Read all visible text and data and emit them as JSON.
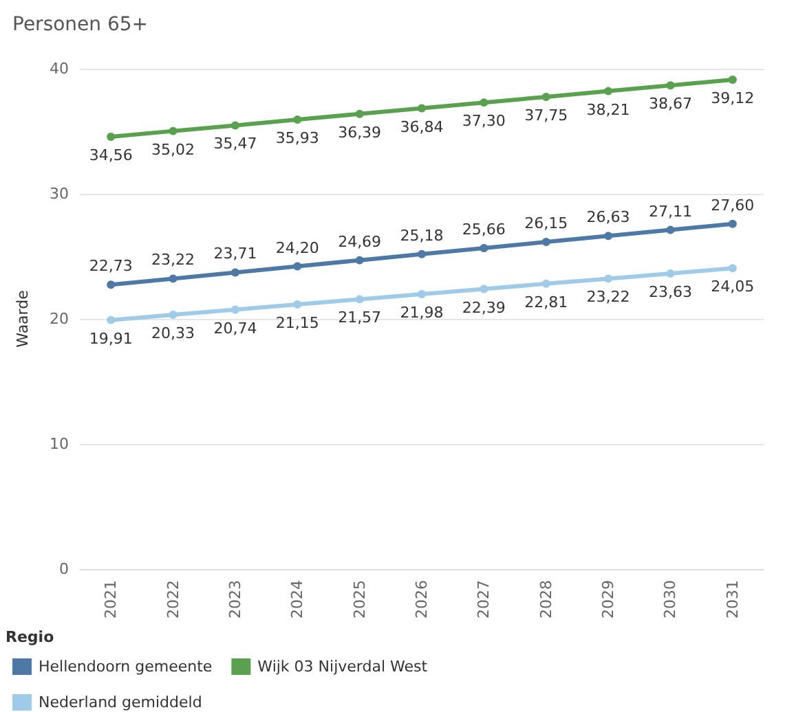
{
  "chart_data": {
    "type": "line",
    "title": "Personen 65+",
    "ylabel": "Waarde",
    "legend_title": "Regio",
    "categories": [
      "2021",
      "2022",
      "2023",
      "2024",
      "2025",
      "2026",
      "2027",
      "2028",
      "2029",
      "2030",
      "2031"
    ],
    "series": [
      {
        "name": "Hellendoorn gemeente",
        "color": "#4e79a7",
        "values": [
          22.73,
          23.22,
          23.71,
          24.2,
          24.69,
          25.18,
          25.66,
          26.15,
          26.63,
          27.11,
          27.6
        ],
        "value_labels": [
          "22,73",
          "23,22",
          "23,71",
          "24,20",
          "24,69",
          "25,18",
          "25,66",
          "26,15",
          "26,63",
          "27,11",
          "27,60"
        ]
      },
      {
        "name": "Wijk 03 Nijverdal West",
        "color": "#59a14f",
        "values": [
          34.56,
          35.02,
          35.47,
          35.93,
          36.39,
          36.84,
          37.3,
          37.75,
          38.21,
          38.67,
          39.12
        ],
        "value_labels": [
          "34,56",
          "35,02",
          "35,47",
          "35,93",
          "36,39",
          "36,84",
          "37,30",
          "37,75",
          "38,21",
          "38,67",
          "39,12"
        ]
      },
      {
        "name": "Nederland gemiddeld",
        "color": "#a0cbe8",
        "values": [
          19.91,
          20.33,
          20.74,
          21.15,
          21.57,
          21.98,
          22.39,
          22.81,
          23.22,
          23.63,
          24.05
        ],
        "value_labels": [
          "19,91",
          "20,33",
          "20,74",
          "21,15",
          "21,57",
          "21,98",
          "22,39",
          "22,81",
          "23,22",
          "23,63",
          "24,05"
        ]
      }
    ],
    "ylim": [
      0,
      40
    ],
    "yticks": [
      0,
      10,
      20,
      30,
      40
    ],
    "grid": "y",
    "legend": "bottom",
    "marker": "circle",
    "line_style": "solid"
  }
}
